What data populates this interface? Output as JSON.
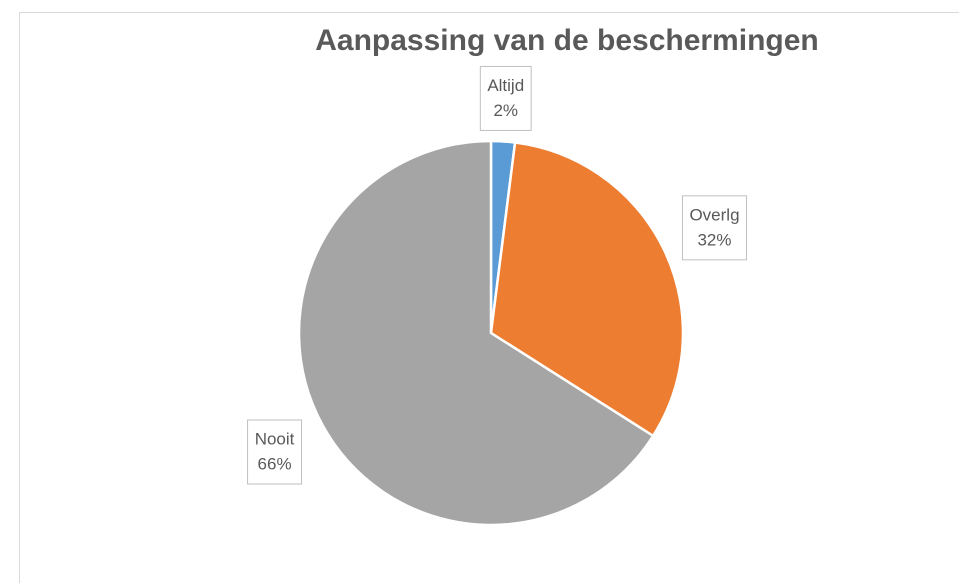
{
  "chart_data": {
    "type": "pie",
    "title": "Aanpassing van de beschermingen",
    "categories": [
      "Altijd",
      "Overlg",
      "Nooit"
    ],
    "values": [
      2,
      32,
      66
    ],
    "value_labels": [
      "2%",
      "32%",
      "66%"
    ],
    "colors": [
      "#5b9bd5",
      "#ed7d31",
      "#a5a5a5"
    ]
  }
}
